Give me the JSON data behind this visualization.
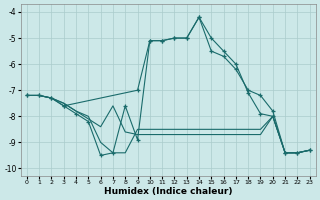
{
  "xlabel": "Humidex (Indice chaleur)",
  "xlim": [
    -0.5,
    23.5
  ],
  "ylim": [
    -10.3,
    -3.7
  ],
  "yticks": [
    -10,
    -9,
    -8,
    -7,
    -6,
    -5,
    -4
  ],
  "xticks": [
    0,
    1,
    2,
    3,
    4,
    5,
    6,
    7,
    8,
    9,
    10,
    11,
    12,
    13,
    14,
    15,
    16,
    17,
    18,
    19,
    20,
    21,
    22,
    23
  ],
  "background_color": "#cce8e8",
  "grid_color": "#aacccc",
  "line_color": "#1a6b6b",
  "line1_x": [
    0,
    1,
    2,
    3,
    4,
    5,
    6,
    7,
    8,
    9,
    10,
    11,
    12,
    13,
    14,
    15,
    16,
    17,
    18,
    19,
    20,
    21,
    22,
    23
  ],
  "line1_y": [
    -7.2,
    -7.2,
    -7.3,
    -7.6,
    -7.9,
    -8.2,
    -9.5,
    -9.4,
    -7.6,
    -8.9,
    -5.1,
    -5.1,
    -5.0,
    -5.0,
    -4.2,
    -5.0,
    -5.5,
    -6.0,
    -7.1,
    -7.9,
    -8.0,
    -9.4,
    -9.4,
    -9.3
  ],
  "line2_x": [
    0,
    1,
    2,
    3,
    9,
    10,
    11,
    12,
    13,
    14,
    15,
    16,
    17,
    18,
    19,
    20,
    21,
    22,
    23
  ],
  "line2_y": [
    -7.2,
    -7.2,
    -7.3,
    -7.6,
    -7.0,
    -5.1,
    -5.1,
    -5.0,
    -5.0,
    -4.2,
    -5.5,
    -5.7,
    -6.2,
    -7.0,
    -7.2,
    -7.8,
    -9.4,
    -9.4,
    -9.3
  ],
  "line3_x": [
    0,
    1,
    2,
    3,
    4,
    5,
    6,
    7,
    8,
    9,
    10,
    11,
    12,
    13,
    14,
    15,
    16,
    17,
    18,
    19,
    20,
    21,
    22,
    23
  ],
  "line3_y": [
    -7.2,
    -7.2,
    -7.3,
    -7.5,
    -7.8,
    -8.1,
    -8.4,
    -7.6,
    -8.6,
    -8.7,
    -8.7,
    -8.7,
    -8.7,
    -8.7,
    -8.7,
    -8.7,
    -8.7,
    -8.7,
    -8.7,
    -8.7,
    -8.0,
    -9.4,
    -9.4,
    -9.3
  ],
  "line4_x": [
    0,
    1,
    2,
    3,
    4,
    5,
    6,
    7,
    8,
    9,
    10,
    11,
    12,
    13,
    14,
    15,
    16,
    17,
    18,
    19,
    20,
    21,
    22,
    23
  ],
  "line4_y": [
    -7.2,
    -7.2,
    -7.3,
    -7.5,
    -7.8,
    -8.0,
    -9.0,
    -9.4,
    -9.4,
    -8.5,
    -8.5,
    -8.5,
    -8.5,
    -8.5,
    -8.5,
    -8.5,
    -8.5,
    -8.5,
    -8.5,
    -8.5,
    -8.0,
    -9.4,
    -9.4,
    -9.3
  ]
}
